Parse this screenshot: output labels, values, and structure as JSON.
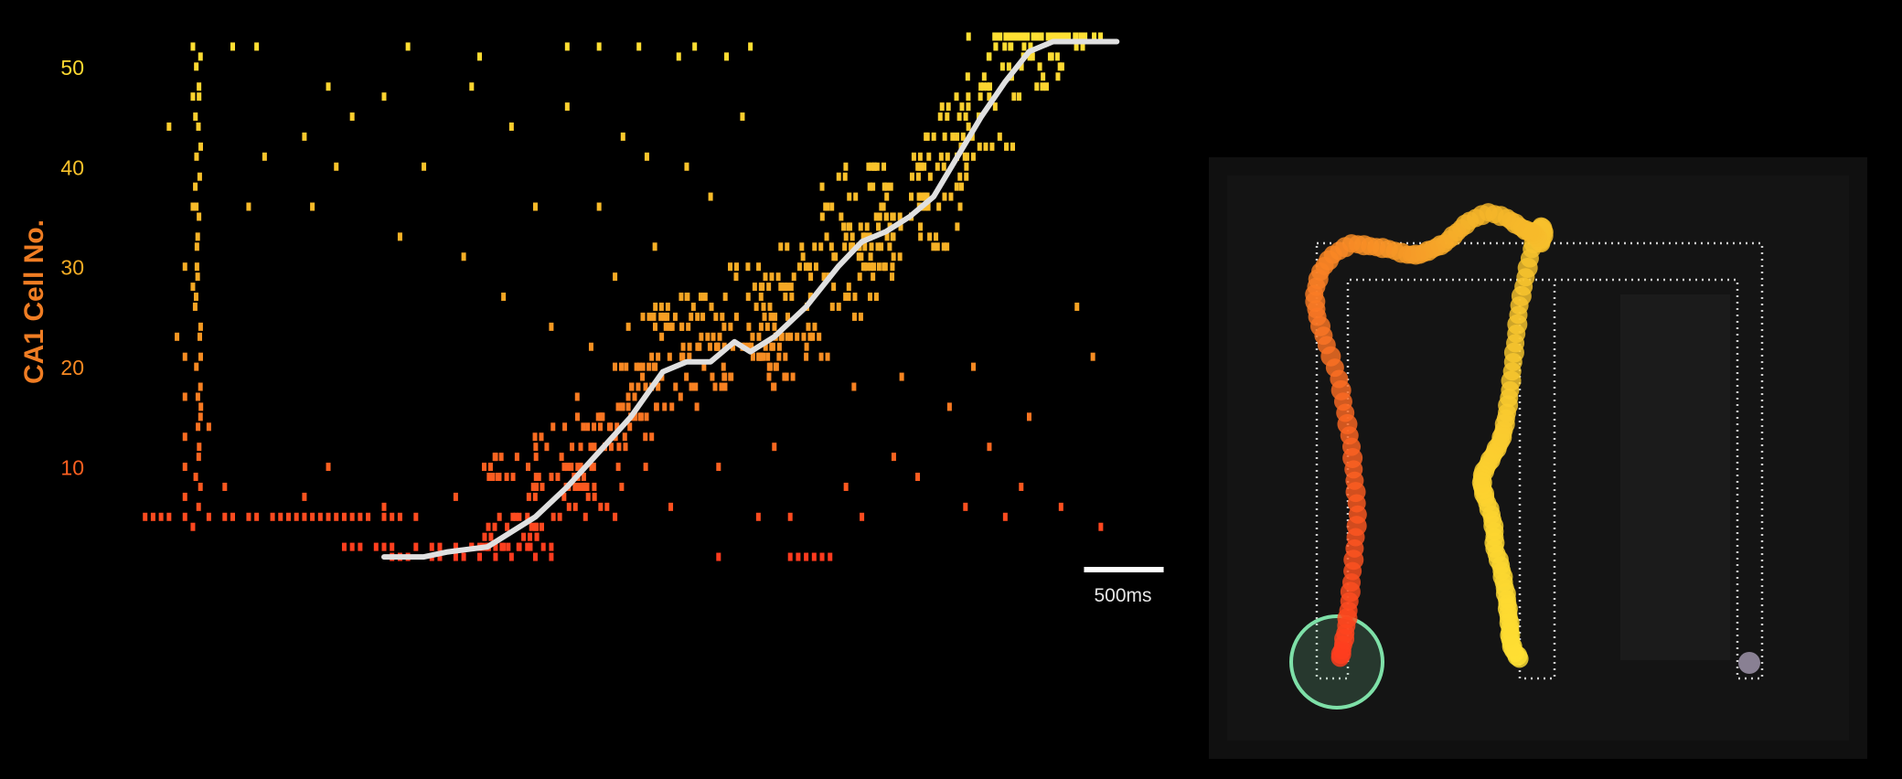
{
  "chart_data": [
    {
      "type": "scatter",
      "title": "",
      "xlabel": "",
      "ylabel": "CA1 Cell No.",
      "ylim": [
        0,
        53
      ],
      "yticks": [
        "10",
        "20",
        "30",
        "40",
        "50"
      ],
      "grid": false,
      "legend": "none",
      "colors": {
        "low": "#ff3b1e",
        "mid": "#f5a623",
        "high": "#ffe033",
        "trajectory": "#e0e0e0"
      },
      "scale_bar_label": "500ms",
      "scale_bar_seconds": 0.5,
      "time_range_s": [
        0,
        6.2
      ],
      "trajectory": {
        "name": "",
        "t": [
          1.55,
          1.8,
          1.95,
          2.2,
          2.3,
          2.5,
          2.7,
          2.9,
          3.1,
          3.3,
          3.45,
          3.6,
          3.75,
          3.85,
          4.0,
          4.2,
          4.4,
          4.55,
          4.7,
          4.85,
          5.0,
          5.15,
          5.3,
          5.45,
          5.6,
          5.75,
          5.85,
          6.0,
          6.15
        ],
        "cell": [
          1,
          1,
          1.5,
          2,
          3,
          5,
          8,
          11.5,
          15,
          19.5,
          20.5,
          20.5,
          22.5,
          21.5,
          23,
          26,
          30,
          32.5,
          33.5,
          35,
          37,
          41,
          45,
          48.5,
          51.5,
          52.5,
          52.5,
          52.5,
          52.5
        ]
      },
      "spikes": {
        "cell_5_row": [
          0.05,
          0.1,
          0.15,
          0.2,
          0.3,
          0.45,
          0.55,
          0.6,
          0.7,
          0.75,
          0.85,
          0.9,
          0.95,
          1.0,
          1.05,
          1.1,
          1.15,
          1.2,
          1.25,
          1.3,
          1.35,
          1.4,
          1.45,
          1.55,
          1.6,
          1.65,
          1.75,
          2.45,
          3.0,
          3.9,
          4.1,
          4.55,
          5.45
        ],
        "cell_2_row": [
          1.3,
          1.35,
          1.4,
          1.5,
          1.55,
          1.6,
          1.75,
          1.85,
          1.9,
          2.0,
          2.1,
          2.15,
          2.2,
          2.25,
          2.3,
          2.4,
          2.45,
          2.55,
          2.6
        ],
        "cell_1_row": [
          1.6,
          1.65,
          1.7,
          1.85,
          1.9,
          2.0,
          2.05,
          2.15,
          2.25,
          2.35,
          2.5,
          2.6,
          3.65,
          4.1,
          4.15,
          4.2,
          4.25,
          4.3,
          4.35
        ],
        "sparse": [
          [
            0.35,
            52
          ],
          [
            0.6,
            52
          ],
          [
            0.75,
            52
          ],
          [
            1.7,
            52
          ],
          [
            2.15,
            51
          ],
          [
            2.7,
            52
          ],
          [
            2.9,
            52
          ],
          [
            3.15,
            52
          ],
          [
            3.4,
            51
          ],
          [
            3.5,
            52
          ],
          [
            3.7,
            51
          ],
          [
            3.85,
            52
          ],
          [
            0.2,
            44
          ],
          [
            0.35,
            47
          ],
          [
            1.2,
            48
          ],
          [
            1.35,
            45
          ],
          [
            1.55,
            47
          ],
          [
            2.1,
            48
          ],
          [
            2.35,
            44
          ],
          [
            2.7,
            46
          ],
          [
            3.05,
            43
          ],
          [
            3.2,
            41
          ],
          [
            3.45,
            40
          ],
          [
            3.6,
            37
          ],
          [
            3.8,
            45
          ],
          [
            4.3,
            38
          ],
          [
            0.8,
            41
          ],
          [
            1.05,
            43
          ],
          [
            1.25,
            40
          ],
          [
            1.8,
            40
          ],
          [
            2.5,
            36
          ],
          [
            2.9,
            36
          ],
          [
            0.35,
            36
          ],
          [
            0.7,
            36
          ],
          [
            1.1,
            36
          ],
          [
            1.65,
            33
          ],
          [
            2.05,
            31
          ],
          [
            2.3,
            27
          ],
          [
            3.25,
            32
          ],
          [
            3.0,
            29
          ],
          [
            0.3,
            30
          ],
          [
            0.35,
            28
          ],
          [
            0.25,
            23
          ],
          [
            0.3,
            21
          ],
          [
            0.3,
            17
          ],
          [
            0.4,
            16
          ],
          [
            0.45,
            14
          ],
          [
            0.3,
            13
          ],
          [
            0.3,
            10
          ],
          [
            0.3,
            7
          ],
          [
            0.35,
            4
          ],
          [
            0.55,
            8
          ],
          [
            1.05,
            7
          ],
          [
            1.2,
            10
          ],
          [
            1.55,
            6
          ],
          [
            2.0,
            7
          ],
          [
            2.6,
            24
          ],
          [
            2.85,
            22
          ],
          [
            4.2,
            21
          ],
          [
            4.5,
            18
          ],
          [
            4.8,
            19
          ],
          [
            5.1,
            16
          ],
          [
            5.25,
            20
          ],
          [
            5.35,
            12
          ],
          [
            5.6,
            15
          ],
          [
            5.9,
            26
          ],
          [
            6.0,
            21
          ],
          [
            4.9,
            9
          ],
          [
            5.2,
            6
          ],
          [
            5.55,
            8
          ],
          [
            5.8,
            6
          ],
          [
            6.05,
            4
          ],
          [
            3.35,
            6
          ],
          [
            3.65,
            10
          ],
          [
            4.0,
            12
          ],
          [
            4.45,
            8
          ],
          [
            4.75,
            11
          ]
        ],
        "band": {
          "t_start": 2.2,
          "t_end": 5.9,
          "cell_min": 2,
          "cell_max": 53,
          "count": 420
        }
      }
    },
    {
      "type": "scatter",
      "title": "",
      "xlabel": "",
      "ylabel": "",
      "grid": false,
      "legend": "none",
      "colors": {
        "start": "#ff3b1e",
        "end": "#ffe033",
        "marker": "#7ee0a8"
      },
      "path_points": {
        "x": [
          0.47,
          0.46,
          0.455,
          0.455,
          0.452,
          0.45,
          0.445,
          0.44,
          0.43,
          0.43,
          0.425,
          0.415,
          0.41,
          0.41,
          0.42,
          0.43,
          0.44,
          0.445,
          0.45,
          0.455,
          0.46,
          0.465,
          0.47,
          0.48,
          0.49,
          0.5,
          0.505,
          0.51,
          0.505,
          0.5,
          0.495,
          0.49,
          0.485,
          0.47,
          0.45,
          0.42,
          0.39,
          0.37,
          0.35,
          0.33,
          0.31,
          0.29,
          0.26,
          0.23,
          0.2,
          0.17,
          0.15,
          0.14,
          0.145,
          0.16,
          0.18,
          0.19,
          0.2,
          0.205,
          0.21,
          0.205,
          0.2,
          0.195,
          0.19,
          0.185,
          0.18
        ],
        "y": [
          0.855,
          0.84,
          0.82,
          0.8,
          0.775,
          0.75,
          0.72,
          0.69,
          0.66,
          0.63,
          0.6,
          0.57,
          0.55,
          0.53,
          0.51,
          0.49,
          0.47,
          0.45,
          0.42,
          0.38,
          0.33,
          0.28,
          0.23,
          0.18,
          0.13,
          0.1,
          0.09,
          0.1,
          0.12,
          0.11,
          0.105,
          0.1,
          0.1,
          0.09,
          0.075,
          0.065,
          0.08,
          0.1,
          0.12,
          0.13,
          0.14,
          0.14,
          0.13,
          0.125,
          0.12,
          0.14,
          0.17,
          0.21,
          0.25,
          0.3,
          0.36,
          0.42,
          0.48,
          0.54,
          0.6,
          0.66,
          0.72,
          0.77,
          0.81,
          0.84,
          0.86
        ]
      }
    }
  ]
}
